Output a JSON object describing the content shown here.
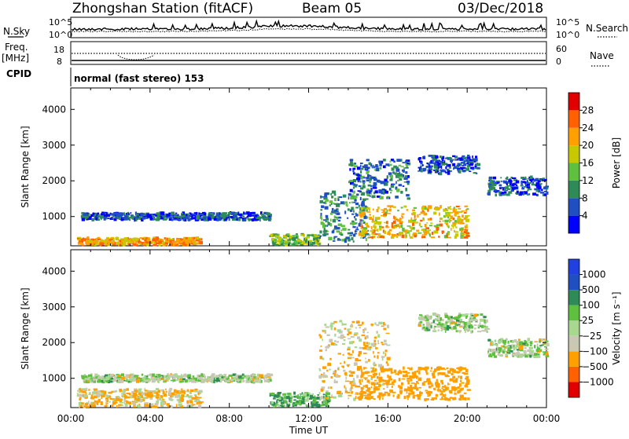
{
  "header": {
    "station": "Zhongshan Station (fitACF)",
    "beam": "Beam 05",
    "date": "03/Dec/2018"
  },
  "side_labels": {
    "nsky": "N.Sky",
    "nsearch": "N.Search",
    "freq_line1": "Freq.",
    "freq_line2": "[MHz]",
    "nave": "Nave",
    "cpid": "CPID"
  },
  "top_panels": {
    "noise_left_ticks": [
      "10^5",
      "10^0"
    ],
    "noise_right_ticks": [
      "10^5",
      "10^0"
    ],
    "freq_left_ticks": [
      "18",
      "8"
    ],
    "freq_right_ticks": [
      "60",
      "0"
    ],
    "cpid_text": "normal (fast stereo) 153"
  },
  "chart_data": [
    {
      "type": "heatmap",
      "name": "Power",
      "xlabel": "Time UT",
      "ylabel": "Slant Range [km]",
      "xlim": [
        0,
        24
      ],
      "ylim": [
        180,
        4600
      ],
      "x_ticks": [
        "00:00",
        "04:00",
        "08:00",
        "12:00",
        "16:00",
        "20:00",
        "00:00"
      ],
      "y_ticks": [
        "1000",
        "2000",
        "3000",
        "4000"
      ],
      "colorbar": {
        "label": "Power [dB]",
        "ticks": [
          "28",
          "24",
          "20",
          "16",
          "12",
          "8",
          "4"
        ],
        "colors": [
          "#0000ff",
          "#1f4fc0",
          "#2e8b57",
          "#5fbf3f",
          "#c8c800",
          "#ffa000",
          "#ff6000",
          "#e00000"
        ]
      },
      "echo_regions": [
        {
          "t0": 0.3,
          "t1": 6.5,
          "r0": 200,
          "r1": 400,
          "value": 22
        },
        {
          "t0": 0.5,
          "t1": 10,
          "r0": 900,
          "r1": 1100,
          "value": 6
        },
        {
          "t0": 10,
          "t1": 12.5,
          "r0": 200,
          "r1": 500,
          "value": 14
        },
        {
          "t0": 12.5,
          "t1": 15,
          "r0": 300,
          "r1": 1700,
          "value": 10
        },
        {
          "t0": 14,
          "t1": 17,
          "r0": 1500,
          "r1": 2600,
          "value": 8
        },
        {
          "t0": 14.5,
          "t1": 20,
          "r0": 400,
          "r1": 1300,
          "value": 20
        },
        {
          "t0": 17.5,
          "t1": 20.5,
          "r0": 2200,
          "r1": 2700,
          "value": 6
        },
        {
          "t0": 21,
          "t1": 24,
          "r0": 1600,
          "r1": 2100,
          "value": 6
        }
      ]
    },
    {
      "type": "heatmap",
      "name": "Velocity",
      "xlabel": "Time UT",
      "ylabel": "Slant Range [km]",
      "xlim": [
        0,
        24
      ],
      "ylim": [
        180,
        4600
      ],
      "x_ticks": [
        "00:00",
        "04:00",
        "08:00",
        "12:00",
        "16:00",
        "20:00",
        "00:00"
      ],
      "y_ticks": [
        "1000",
        "2000",
        "3000",
        "4000"
      ],
      "colorbar": {
        "label": "Velocity [m s⁻¹]",
        "ticks": [
          "1000",
          "500",
          "100",
          "25",
          "−25",
          "−100",
          "−500",
          "−1000"
        ],
        "colors": [
          "#e00000",
          "#ff6000",
          "#ffa000",
          "#c8c8b4",
          "#a8d890",
          "#5fbf3f",
          "#2e8b57",
          "#1f4fc0",
          "#2040e0"
        ]
      },
      "echo_regions": [
        {
          "t0": 0.3,
          "t1": 6.5,
          "r0": 200,
          "r1": 700,
          "value": -100
        },
        {
          "t0": 0.5,
          "t1": 10,
          "r0": 900,
          "r1": 1100,
          "value": 0
        },
        {
          "t0": 10,
          "t1": 13,
          "r0": 200,
          "r1": 600,
          "value": 100
        },
        {
          "t0": 12.5,
          "t1": 16,
          "r0": 400,
          "r1": 2600,
          "value": -100
        },
        {
          "t0": 14.5,
          "t1": 20,
          "r0": 400,
          "r1": 1300,
          "value": -250
        },
        {
          "t0": 17.5,
          "t1": 21,
          "r0": 2300,
          "r1": 2800,
          "value": 0
        },
        {
          "t0": 21,
          "t1": 24,
          "r0": 1600,
          "r1": 2100,
          "value": 0
        }
      ]
    }
  ]
}
